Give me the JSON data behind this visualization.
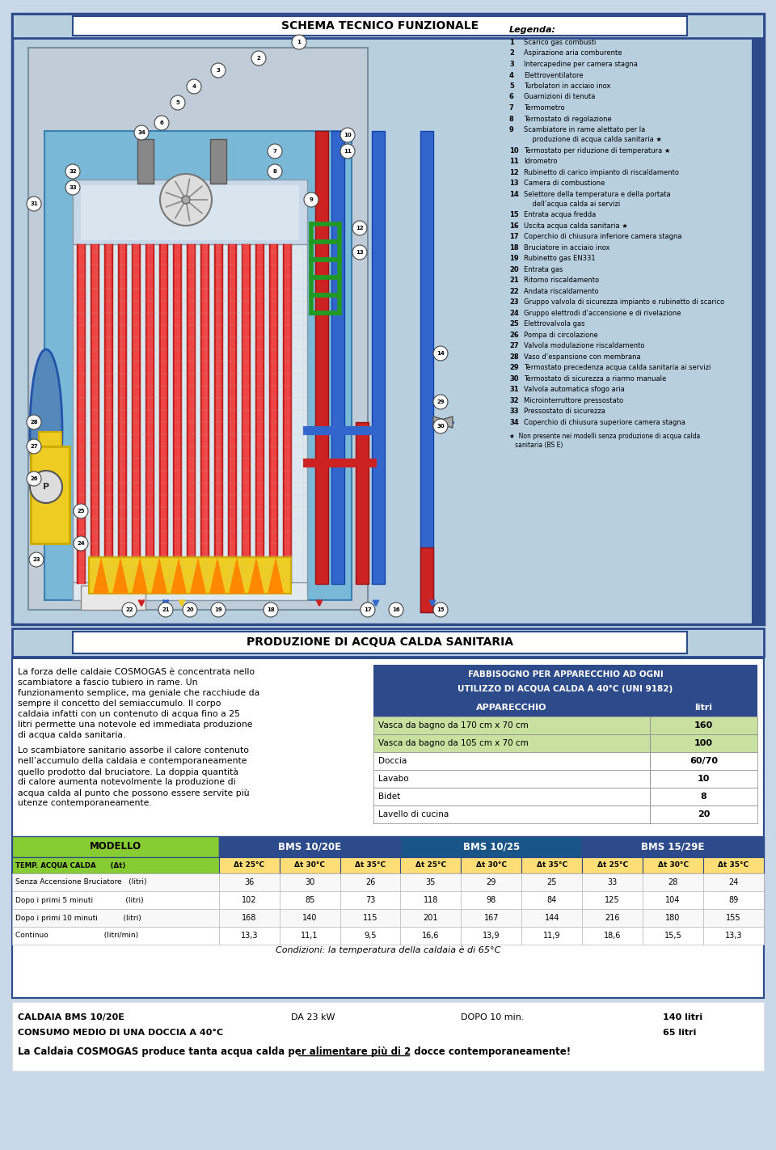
{
  "bg_color": "#c8d8e8",
  "title1": "SCHEMA TECNICO FUNZIONALE",
  "title2": "PRODUZIONE DI ACQUA CALDA SANITARIA",
  "legend_title": "Legenda:",
  "legend_items": [
    [
      "1",
      "Scarico gas combusti"
    ],
    [
      "2",
      "Aspirazione aria comburente"
    ],
    [
      "3",
      "Intercapedine per camera stagna"
    ],
    [
      "4",
      "Elettroventilatore"
    ],
    [
      "5",
      "Turbolatori in acciaio inox"
    ],
    [
      "6",
      "Guarnizioni di tenuta"
    ],
    [
      "7",
      "Termometro"
    ],
    [
      "8",
      "Termostato di regolazione"
    ],
    [
      "9",
      "Scambiatore in rame alettato per la\n    produzione di acqua calda sanitaria ★"
    ],
    [
      "10",
      "Termostato per riduzione di temperatura ★"
    ],
    [
      "11",
      "Idrometro"
    ],
    [
      "12",
      "Rubinetto di carico impianto di riscaldamento"
    ],
    [
      "13",
      "Camera di combustione"
    ],
    [
      "14",
      "Selettore della temperatura e della portata\n    dell’acqua calda ai servizi"
    ],
    [
      "15",
      "Entrata acqua fredda"
    ],
    [
      "16",
      "Uscita acqua calda sanitaria ★"
    ],
    [
      "17",
      "Coperchio di chiusura inferiore camera stagna"
    ],
    [
      "18",
      "Bruciatore in acciaio inox"
    ],
    [
      "19",
      "Rubinetto gas EN331"
    ],
    [
      "20",
      "Entrata gas"
    ],
    [
      "21",
      "Ritorno riscaldamento"
    ],
    [
      "22",
      "Andata riscaldamento"
    ],
    [
      "23",
      "Gruppo valvola di sicurezza impianto e rubinetto di scarico"
    ],
    [
      "24",
      "Gruppo elettrodi d’accensione e di rivelazione"
    ],
    [
      "25",
      "Elettrovalvola gas"
    ],
    [
      "26",
      "Pompa di circolazione"
    ],
    [
      "27",
      "Valvola modulazione riscaldamento"
    ],
    [
      "28",
      "Vaso d’espansione con membrana"
    ],
    [
      "29",
      "Termostato precedenza acqua calda sanitaria ai servizi"
    ],
    [
      "30",
      "Termostato di sicurezza a riarmo manuale"
    ],
    [
      "31",
      "Valvola automatica sfogo aria"
    ],
    [
      "32",
      "Microinterruttore pressostato"
    ],
    [
      "33",
      "Pressostato di sicurezza"
    ],
    [
      "34",
      "Coperchio di chiusura superiore camera stagna"
    ]
  ],
  "legend_footnote": "★  Non presente nei modelli senza produzione di acqua calda\n   sanitaria (BS E)",
  "table1_title_line1": "FABBISOGNO PER APPARECCHIO AD OGNI",
  "table1_title_line2": "UTILIZZO DI ACQUA CALDA A 40°C (UNI 9182)",
  "table1_headers": [
    "APPARECCHIO",
    "litri"
  ],
  "table1_rows": [
    [
      "Vasca da bagno da 170 cm x 70 cm",
      "160"
    ],
    [
      "Vasca da bagno da 105 cm x 70 cm",
      "100"
    ],
    [
      "Doccia",
      "60/70"
    ],
    [
      "Lavabo",
      "10"
    ],
    [
      "Bidet",
      "8"
    ],
    [
      "Lavello di cucina",
      "20"
    ]
  ],
  "main_text_paras": [
    "La forza delle caldaie COSMOGAS è concentrata nello scambiatore a fascio tubiero in rame. Un funzionamento semplice, ma geniale che racchiude da sempre il concetto del semiaccumulo. Il corpo caldaia infatti con un contenuto di acqua fino a 25 litri permette una notevole ed immediata produzione di acqua calda sanitaria.",
    "Lo scambiatore sanitario assorbe il calore contenuto nell’accumulo della caldaia e contemporaneamente quello prodotto dal bruciatore. La doppia quantità di calore aumenta notevolmente la produzione di acqua calda al punto che possono essere servite più utenze contemporaneamente."
  ],
  "table2_groups": [
    "BMS 10/20E",
    "BMS 10/25",
    "BMS 15/29E"
  ],
  "table2_subheaders": [
    "Δt 25°C",
    "Δt 30°C",
    "Δt 35°C"
  ],
  "table2_col0_header": "TEMP. ACQUA CALDA      (Δt)",
  "table2_rows": [
    [
      "Senza Accensione Bruciatore   (litri)",
      "36",
      "30",
      "26",
      "35",
      "29",
      "25",
      "33",
      "28",
      "24"
    ],
    [
      "Dopo i primi 5 minuti              (litri)",
      "102",
      "85",
      "73",
      "118",
      "98",
      "84",
      "125",
      "104",
      "89"
    ],
    [
      "Dopo i primi 10 minuti           (litri)",
      "168",
      "140",
      "115",
      "201",
      "167",
      "144",
      "216",
      "180",
      "155"
    ],
    [
      "Continuo                        (litri/min)",
      "13,3",
      "11,1",
      "9,5",
      "16,6",
      "13,9",
      "11,9",
      "18,6",
      "15,5",
      "13,3"
    ]
  ],
  "table2_note": "Condizioni: la temperatura della caldaia è di 65°C",
  "bottom_lines": [
    {
      "left": "CALDAIA BMS 10/20E",
      "mid1": "DA 23 kW",
      "mid2": "DOPO 10 min.",
      "right": "140 litri",
      "bold": true
    },
    {
      "left": "CONSUMO MEDIO DI UNA DOCCIA A 40°C",
      "right": "65 litri",
      "bold": true
    },
    {
      "text": "La Caldaia COSMOGAS produce tanta acqua calda per alimentare più di ",
      "underline": "2 docce contemporaneamente!",
      "bold": true
    }
  ]
}
